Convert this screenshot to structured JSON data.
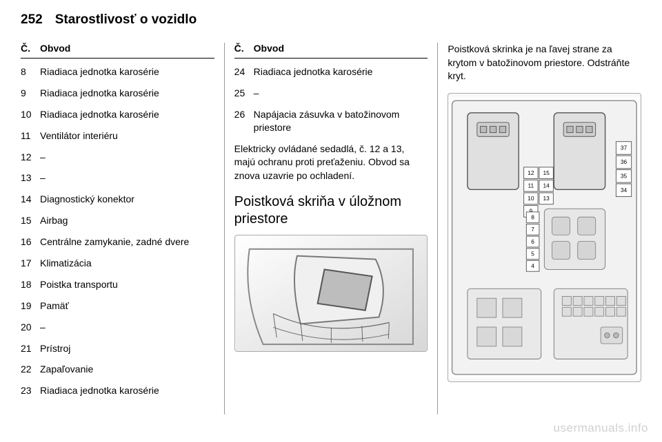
{
  "header": {
    "page_number": "252",
    "chapter": "Starostlivosť o vozidlo"
  },
  "table_header": {
    "col_num": "Č.",
    "col_circ": "Obvod"
  },
  "col1_rows": [
    {
      "n": "8",
      "d": "Riadiaca jednotka karosérie"
    },
    {
      "n": "9",
      "d": "Riadiaca jednotka karosérie"
    },
    {
      "n": "10",
      "d": "Riadiaca jednotka karosérie"
    },
    {
      "n": "11",
      "d": "Ventilátor interiéru"
    },
    {
      "n": "12",
      "d": "–"
    },
    {
      "n": "13",
      "d": "–"
    },
    {
      "n": "14",
      "d": "Diagnostický konektor"
    },
    {
      "n": "15",
      "d": "Airbag"
    },
    {
      "n": "16",
      "d": "Centrálne zamykanie, zadné dvere"
    },
    {
      "n": "17",
      "d": "Klimatizácia"
    },
    {
      "n": "18",
      "d": "Poistka transportu"
    },
    {
      "n": "19",
      "d": "Pamäť"
    },
    {
      "n": "20",
      "d": "–"
    },
    {
      "n": "21",
      "d": "Prístroj"
    },
    {
      "n": "22",
      "d": "Zapaľovanie"
    },
    {
      "n": "23",
      "d": "Riadiaca jednotka karosérie"
    }
  ],
  "col2_rows": [
    {
      "n": "24",
      "d": "Riadiaca jednotka karosérie"
    },
    {
      "n": "25",
      "d": "–"
    },
    {
      "n": "26",
      "d": "Napájacia zásuvka v batožinovom priestore"
    }
  ],
  "col2_para": "Elektricky ovládané sedadlá, č. 12 a 13, majú ochranu proti preťaženiu. Obvod sa znova uzavrie po ochladení.",
  "col2_heading": "Poistková skriňa v úložnom priestore",
  "col3_para": "Poistková skrinka je na ľavej strane za krytom v batožinovom priestore. Odstráňte kryt.",
  "fuse_numbers": {
    "block_a": [
      "12",
      "15",
      "11",
      "14",
      "10",
      "13",
      "9"
    ],
    "block_b": [
      "8",
      "7",
      "6",
      "5",
      "4"
    ],
    "right_strip": [
      "37",
      "36",
      "35",
      "34"
    ]
  },
  "watermark": "usermanuals.info",
  "colors": {
    "text": "#000000",
    "divider": "#999999",
    "figure_border": "#aaaaaa",
    "figure_bg": "#f8f8f8",
    "watermark": "#d0d0d0"
  }
}
